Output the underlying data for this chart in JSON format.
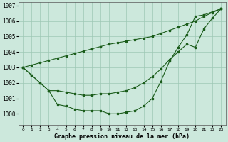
{
  "title": "Graphe pression niveau de la mer (hPa)",
  "x_labels": [
    "0",
    "1",
    "2",
    "3",
    "4",
    "5",
    "6",
    "7",
    "8",
    "9",
    "10",
    "11",
    "12",
    "13",
    "14",
    "15",
    "16",
    "17",
    "18",
    "19",
    "20",
    "21",
    "22",
    "23"
  ],
  "ylim": [
    999.3,
    1007.2
  ],
  "yticks": [
    1000,
    1001,
    1002,
    1003,
    1004,
    1005,
    1006,
    1007
  ],
  "bg_color": "#cce8dc",
  "grid_color": "#9dc8b4",
  "line_color": "#1a5c1a",
  "series_straight": [
    1003.0,
    1003.15,
    1003.3,
    1003.45,
    1003.6,
    1003.75,
    1003.9,
    1004.05,
    1004.2,
    1004.35,
    1004.5,
    1004.6,
    1004.7,
    1004.8,
    1004.9,
    1005.0,
    1005.2,
    1005.4,
    1005.6,
    1005.8,
    1006.0,
    1006.3,
    1006.55,
    1006.8
  ],
  "series_mid": [
    1003.0,
    1002.5,
    1002.0,
    1001.5,
    1001.5,
    1001.4,
    1001.3,
    1001.2,
    1001.2,
    1001.3,
    1001.3,
    1001.4,
    1001.5,
    1001.7,
    1002.0,
    1002.4,
    1002.9,
    1003.5,
    1004.0,
    1004.5,
    1004.3,
    1005.5,
    1006.2,
    1006.8
  ],
  "series_deep": [
    1003.0,
    1002.5,
    1002.0,
    1001.5,
    1000.6,
    1000.5,
    1000.3,
    1000.2,
    1000.2,
    1000.2,
    1000.0,
    1000.0,
    1000.1,
    1000.2,
    1000.5,
    1001.0,
    1002.1,
    1003.4,
    1004.3,
    1005.1,
    1006.3,
    1006.4,
    1006.6,
    1006.8
  ]
}
